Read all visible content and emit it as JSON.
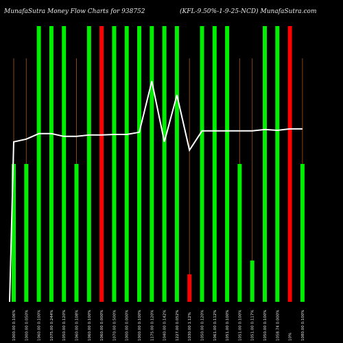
{
  "chart_data": {
    "type": "bar",
    "title_left": "MunafaSutra  Money Flow  Charts for 938752",
    "title_right": "(KFL-9.50%-1-9-25-NCD) MunafaSutra.com",
    "xlabel": "",
    "ylabel": "",
    "ylim": [
      0,
      100
    ],
    "grid": false,
    "categories": [
      "1000.00 0.106%",
      "1000.00 0.050%",
      "1060.00 0.100%",
      "1075.00 0.244%",
      "1050.00 0.120%",
      "1060.00 0.108%",
      "1060.00 0.100%",
      "1060.00 0.000%",
      "1070.00 0.500%",
      "1000.00 0.000%",
      "1000.00 0.100%",
      "1175.00 0.120%",
      "1040.00 0.142%",
      "1227.00 0.052%",
      "1030.00 1.12%",
      "1050.00 0.120%",
      "1061.00 0.112%",
      "1051.00 0.100%",
      "1051.00 0.100%",
      "1051.00 0.117%",
      "1050.00 0.100%",
      "1058.74 0.000%",
      "10%",
      "1080.00 0.100%"
    ],
    "bars": [
      {
        "value": 50,
        "color": "green"
      },
      {
        "value": 50,
        "color": "green"
      },
      {
        "value": 100,
        "color": "green"
      },
      {
        "value": 100,
        "color": "green"
      },
      {
        "value": 100,
        "color": "green"
      },
      {
        "value": 50,
        "color": "green"
      },
      {
        "value": 100,
        "color": "green"
      },
      {
        "value": 100,
        "color": "red"
      },
      {
        "value": 100,
        "color": "green"
      },
      {
        "value": 100,
        "color": "green"
      },
      {
        "value": 100,
        "color": "green"
      },
      {
        "value": 100,
        "color": "green"
      },
      {
        "value": 100,
        "color": "green"
      },
      {
        "value": 100,
        "color": "green"
      },
      {
        "value": 10,
        "color": "red"
      },
      {
        "value": 100,
        "color": "green"
      },
      {
        "value": 100,
        "color": "green"
      },
      {
        "value": 100,
        "color": "green"
      },
      {
        "value": 50,
        "color": "green"
      },
      {
        "value": 15,
        "color": "green"
      },
      {
        "value": 100,
        "color": "green"
      },
      {
        "value": 100,
        "color": "green"
      },
      {
        "value": 100,
        "color": "red"
      },
      {
        "value": 50,
        "color": "green"
      }
    ],
    "line": [
      58,
      59,
      61,
      61,
      60,
      60,
      60.5,
      60.5,
      60.7,
      60.7,
      61.5,
      80,
      58,
      75,
      55,
      62,
      62,
      62,
      62,
      62,
      62.5,
      62.2,
      62.7,
      62.7
    ],
    "colors": {
      "background": "#000000",
      "green_bar": "#00ee00",
      "red_bar": "#ff0000",
      "line": "#ffffff",
      "divider": "#8b4513",
      "text": "#e8e8e8"
    }
  }
}
